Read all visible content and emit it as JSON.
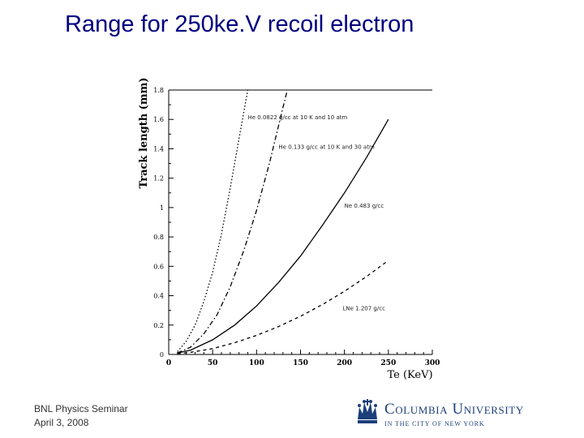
{
  "slide": {
    "title": "Range for 250ke.V recoil electron",
    "footer_line1": "BNL Physics Seminar",
    "footer_line2": "April 3, 2008"
  },
  "logo": {
    "name": "Columbia University",
    "tagline": "IN THE CITY OF NEW YORK",
    "color": "#1c3f7a"
  },
  "chart_data": {
    "type": "line",
    "title": "",
    "xlabel": "Te (KeV)",
    "ylabel": "Track length (mm)",
    "xlim": [
      0,
      300
    ],
    "ylim": [
      0,
      1.8
    ],
    "x_ticks": [
      0,
      50,
      100,
      150,
      200,
      250,
      300
    ],
    "y_ticks": [
      0,
      0.2,
      0.4,
      0.6,
      0.8,
      1,
      1.2,
      1.4,
      1.6,
      1.8
    ],
    "x_tick_labels": [
      "0",
      "50",
      "100",
      "150",
      "200",
      "250",
      "300"
    ],
    "y_tick_labels": [
      "0",
      "0.2",
      "0.4",
      "0.6",
      "0.8",
      "1",
      "1.2",
      "1.4",
      "1.6",
      "1.8"
    ],
    "series": [
      {
        "name": "He 0.0822 g/cc at 10 K and 10 atm",
        "style": "dotted",
        "x": [
          10,
          20,
          30,
          40,
          50,
          60,
          70,
          80,
          90
        ],
        "y": [
          0.02,
          0.09,
          0.2,
          0.36,
          0.56,
          0.82,
          1.13,
          1.47,
          1.8
        ]
      },
      {
        "name": "He 0.133 g/cc at 10 K and 30 atm",
        "style": "dashdot",
        "x": [
          10,
          25,
          40,
          55,
          70,
          85,
          100,
          115,
          130,
          135
        ],
        "y": [
          0.01,
          0.05,
          0.14,
          0.27,
          0.46,
          0.7,
          0.98,
          1.31,
          1.68,
          1.8
        ]
      },
      {
        "name": "Ne 0.483 g/cc",
        "style": "solid",
        "x": [
          10,
          25,
          50,
          75,
          100,
          125,
          150,
          175,
          200,
          225,
          250
        ],
        "y": [
          0.01,
          0.03,
          0.1,
          0.2,
          0.33,
          0.49,
          0.67,
          0.88,
          1.1,
          1.34,
          1.6
        ]
      },
      {
        "name": "LNe 1.207 g/cc",
        "style": "dashed",
        "x": [
          10,
          25,
          50,
          75,
          100,
          125,
          150,
          175,
          200,
          225,
          250
        ],
        "y": [
          0.005,
          0.015,
          0.04,
          0.08,
          0.13,
          0.19,
          0.26,
          0.34,
          0.43,
          0.53,
          0.64
        ]
      }
    ],
    "annotations": [
      {
        "text": "He 0.0822 g/cc at 10 K and 10 atm",
        "x": 90,
        "y": 1.6
      },
      {
        "text": "He 0.133 g/cc at 10 K and 30 atm",
        "x": 125,
        "y": 1.4
      },
      {
        "text": "Ne 0.483 g/cc",
        "x": 200,
        "y": 1.0
      },
      {
        "text": "LNe 1.207 g/cc",
        "x": 198,
        "y": 0.3
      }
    ]
  }
}
